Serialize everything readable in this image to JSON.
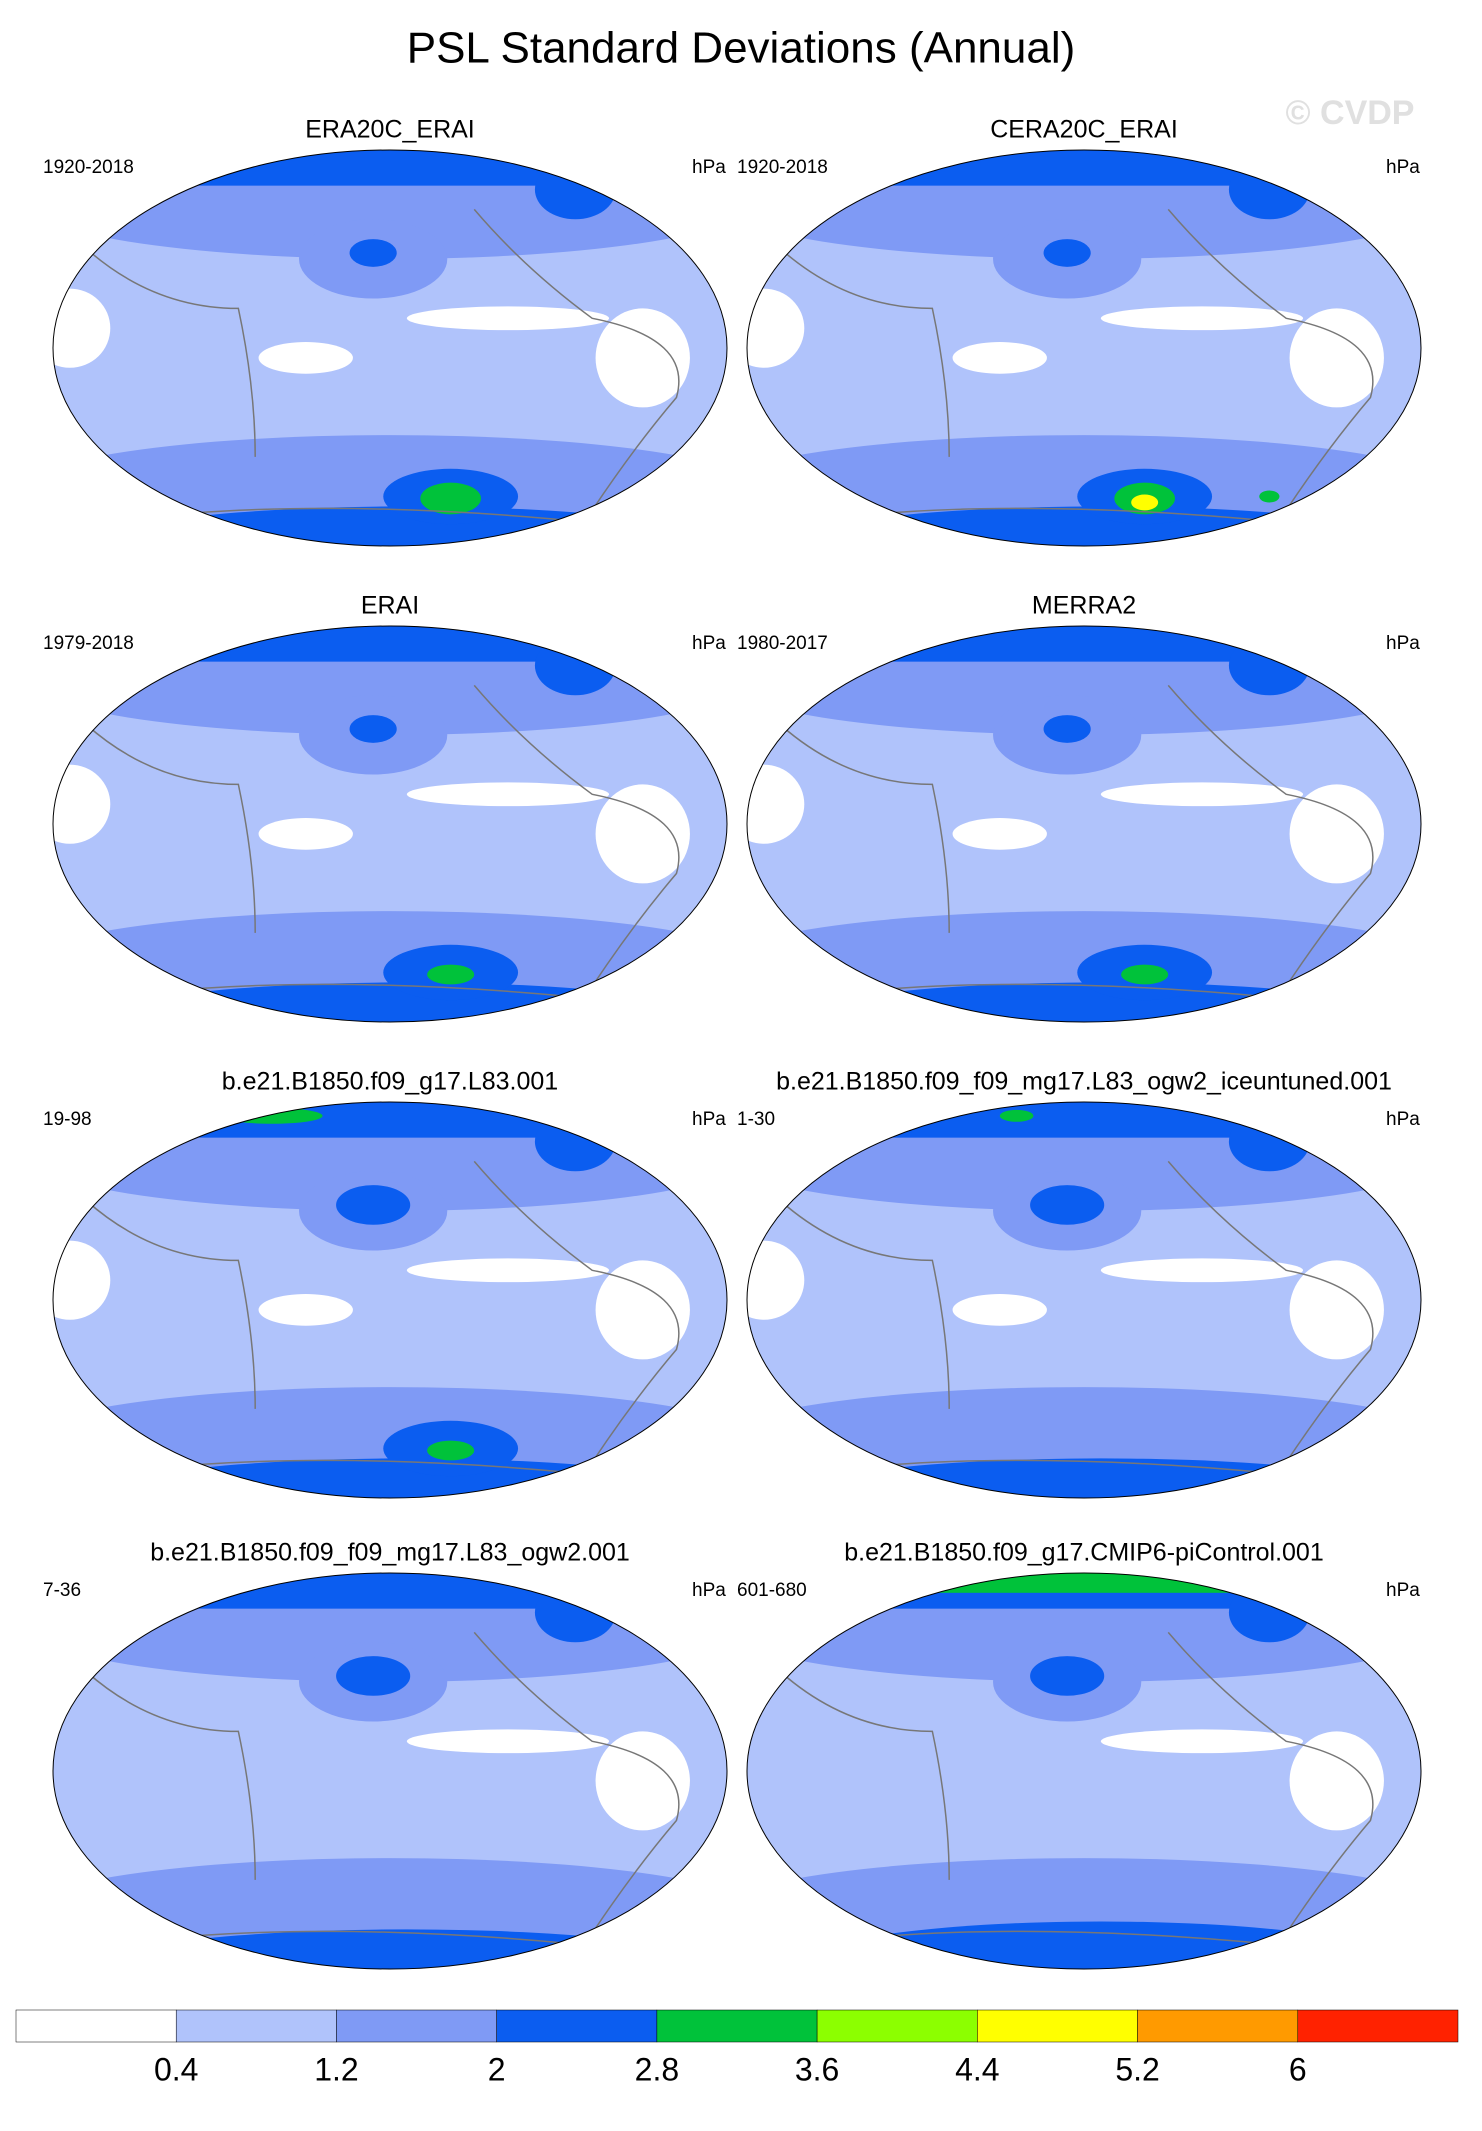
{
  "title": "PSL Standard Deviations (Annual)",
  "watermark": "© CVDP",
  "panels": [
    {
      "title": "ERA20C_ERAI",
      "period": "1920-2018",
      "units": "hPa"
    },
    {
      "title": "CERA20C_ERAI",
      "period": "1920-2018",
      "units": "hPa"
    },
    {
      "title": "ERAI",
      "period": "1979-2018",
      "units": "hPa"
    },
    {
      "title": "MERRA2",
      "period": "1980-2017",
      "units": "hPa"
    },
    {
      "title": "b.e21.B1850.f09_g17.L83.001",
      "period": "19-98",
      "units": "hPa"
    },
    {
      "title": "b.e21.B1850.f09_f09_mg17.L83_ogw2_iceuntuned.001",
      "period": "1-30",
      "units": "hPa"
    },
    {
      "title": "b.e21.B1850.f09_f09_mg17.L83_ogw2.001",
      "period": "7-36",
      "units": "hPa"
    },
    {
      "title": "b.e21.B1850.f09_g17.CMIP6-piControl.001",
      "period": "601-680",
      "units": "hPa"
    }
  ],
  "colorbar": {
    "colors": [
      "#ffffff",
      "#b0c3fb",
      "#7f9af5",
      "#0b5df0",
      "#00c23a",
      "#8cff00",
      "#ffff00",
      "#ff9a00",
      "#ff2200"
    ],
    "ticks": [
      0.4,
      1.2,
      2,
      2.8,
      3.6,
      4.4,
      5.2,
      6
    ]
  }
}
